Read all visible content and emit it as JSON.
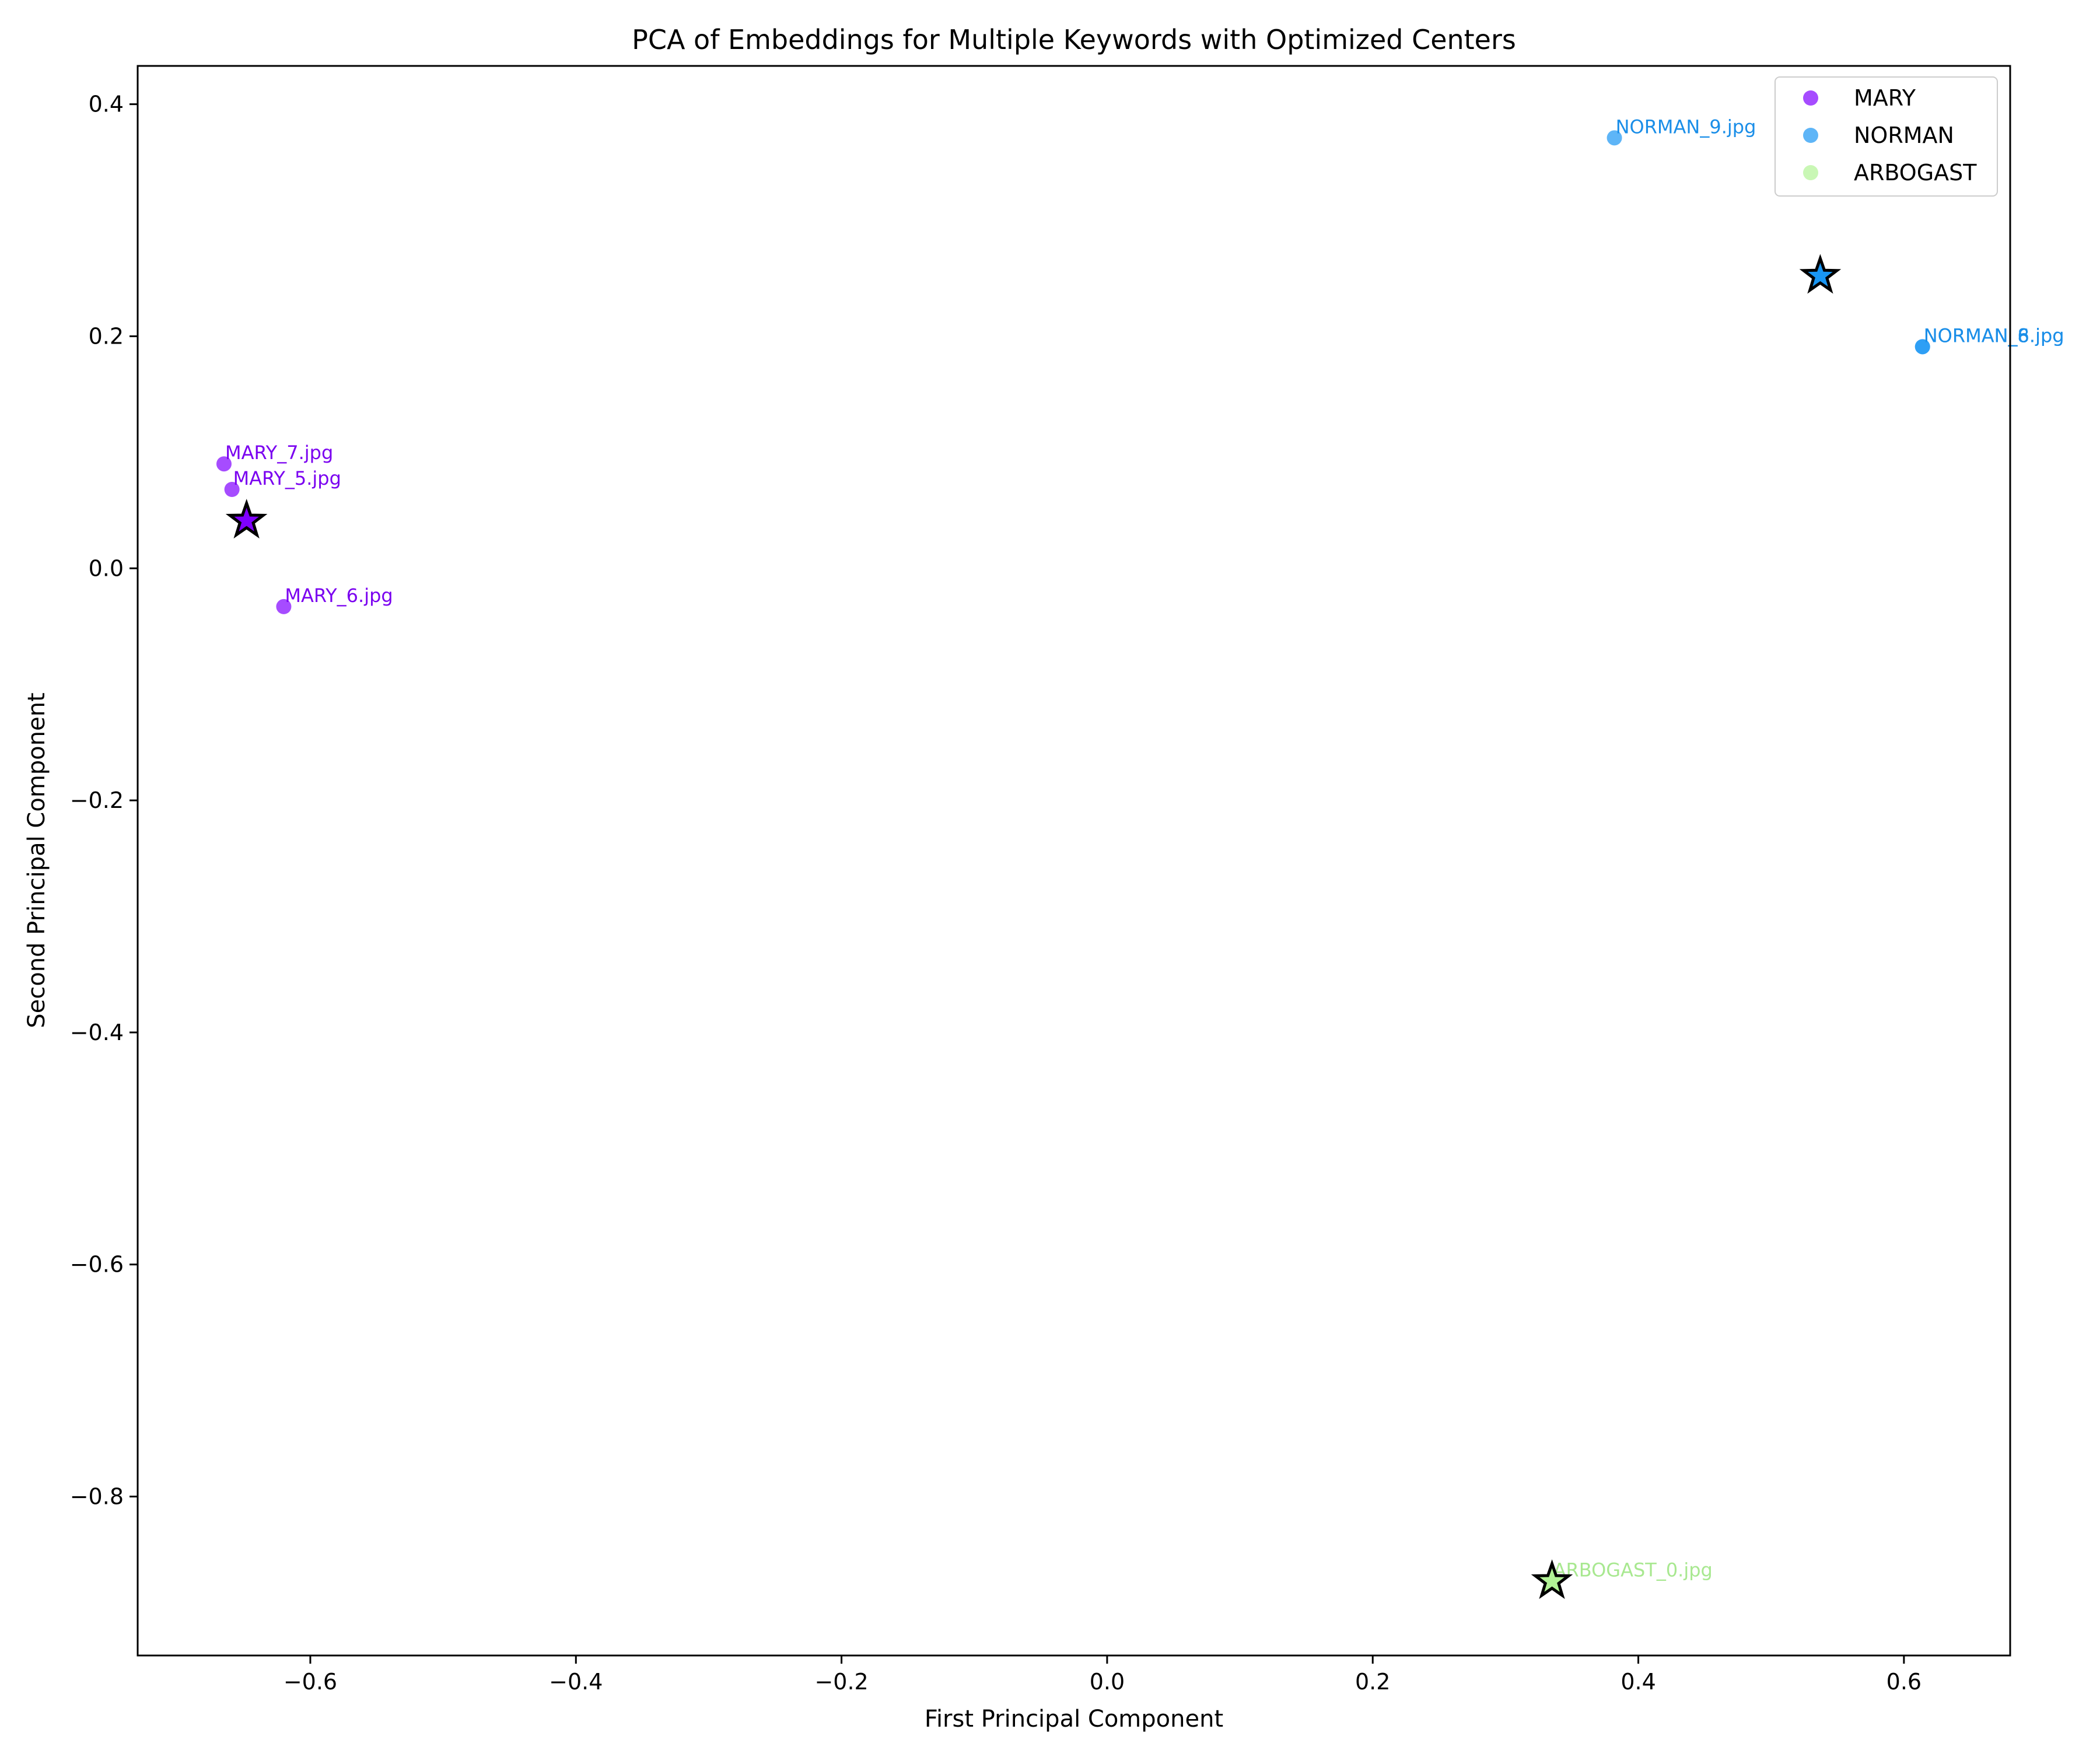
{
  "chart_data": {
    "type": "scatter",
    "title": "PCA of Embeddings for Multiple Keywords with Optimized Centers",
    "xlabel": "First Principal Component",
    "ylabel": "Second Principal Component",
    "xlim": [
      -0.73,
      0.68
    ],
    "ylim": [
      -0.937,
      0.433
    ],
    "xticks": [
      -0.6,
      -0.4,
      -0.2,
      0.0,
      0.2,
      0.4,
      0.6
    ],
    "xtick_labels": [
      "−0.6",
      "−0.4",
      "−0.2",
      "0.0",
      "0.2",
      "0.4",
      "0.6"
    ],
    "yticks": [
      -0.8,
      -0.6,
      -0.4,
      -0.2,
      0.0,
      0.2,
      0.4
    ],
    "ytick_labels": [
      "−0.8",
      "−0.6",
      "−0.4",
      "−0.2",
      "0.0",
      "0.2",
      "0.4"
    ],
    "grid": false,
    "legend_position": "top-right",
    "series": [
      {
        "name": "MARY",
        "color": "#8000ff",
        "label_color": "#7a00f0",
        "points": [
          {
            "x": -0.665,
            "y": 0.09,
            "label": "MARY_7.jpg"
          },
          {
            "x": -0.659,
            "y": 0.068,
            "label": "MARY_5.jpg"
          },
          {
            "x": -0.62,
            "y": -0.033,
            "label": "MARY_6.jpg"
          }
        ],
        "center": {
          "x": -0.648,
          "y": 0.041
        }
      },
      {
        "name": "NORMAN",
        "color": "#1996f3",
        "label_color": "#1a8ee8",
        "points": [
          {
            "x": 0.382,
            "y": 0.371,
            "label": "NORMAN_9.jpg"
          },
          {
            "x": 0.614,
            "y": 0.191,
            "label": "NORMAN_8.jpg"
          },
          {
            "x": 0.614,
            "y": 0.191,
            "label": "NORMAN_6.jpg"
          }
        ],
        "center": {
          "x": 0.537,
          "y": 0.252
        }
      },
      {
        "name": "ARBOGAST",
        "color": "#b2f396",
        "label_color": "#a8e890",
        "points": [
          {
            "x": 0.335,
            "y": -0.873,
            "label": "ARBOGAST_0.jpg"
          }
        ],
        "center": {
          "x": 0.335,
          "y": -0.873
        }
      }
    ]
  }
}
